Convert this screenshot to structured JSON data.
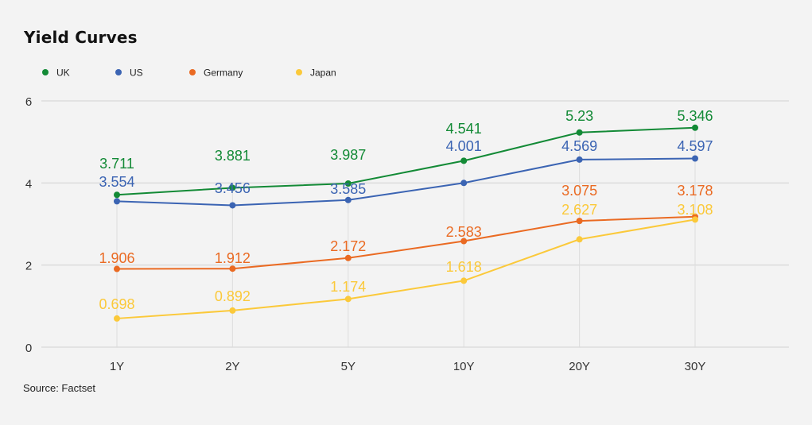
{
  "chart_data": {
    "type": "line",
    "title": "Yield Curves",
    "source": "Source: Factset",
    "xlabel": "",
    "ylabel": "",
    "categories": [
      "1Y",
      "2Y",
      "5Y",
      "10Y",
      "20Y",
      "30Y"
    ],
    "yticks": [
      0,
      2,
      4,
      6
    ],
    "ylim": [
      0,
      6
    ],
    "grid": true,
    "legend_position": "top-left",
    "series": [
      {
        "name": "UK",
        "color": "#138a36",
        "values": [
          3.711,
          3.881,
          3.987,
          4.541,
          5.23,
          5.346
        ],
        "labels": [
          "3.711",
          "3.881",
          "3.987",
          "4.541",
          "5.23",
          "5.346"
        ]
      },
      {
        "name": "US",
        "color": "#3b64b3",
        "values": [
          3.554,
          3.456,
          3.585,
          4.001,
          4.569,
          4.597
        ],
        "labels": [
          "3.554",
          "3.456",
          "3.585",
          "4.001",
          "4.569",
          "4.597"
        ]
      },
      {
        "name": "Germany",
        "color": "#ea6a22",
        "values": [
          1.906,
          1.912,
          2.172,
          2.583,
          3.075,
          3.178
        ],
        "labels": [
          "1.906",
          "1.912",
          "2.172",
          "2.583",
          "3.075",
          "3.178"
        ]
      },
      {
        "name": "Japan",
        "color": "#fbc93a",
        "values": [
          0.698,
          0.892,
          1.174,
          1.618,
          2.627,
          3.108
        ],
        "labels": [
          "0.698",
          "0.892",
          "1.174",
          "1.618",
          "2.627",
          "3.108"
        ]
      }
    ]
  }
}
